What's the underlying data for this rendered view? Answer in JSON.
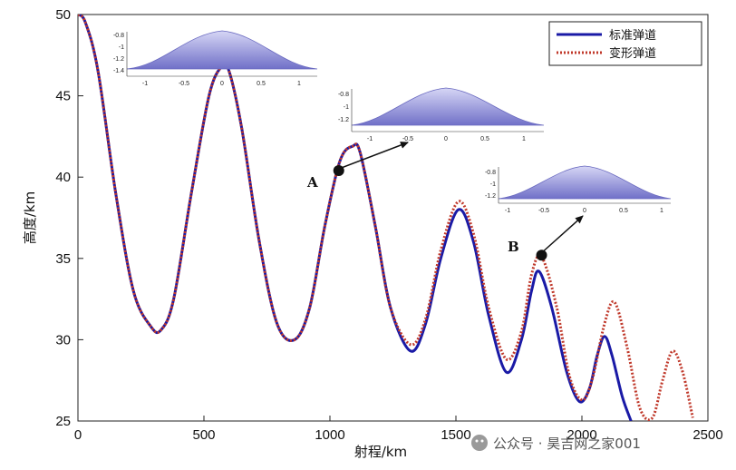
{
  "chart_data": {
    "type": "line",
    "xlabel": "射程/km",
    "ylabel": "高度/km",
    "xlim": [
      0,
      2500
    ],
    "ylim": [
      25,
      50
    ],
    "xticks": [
      0,
      500,
      1000,
      1500,
      2000,
      2500
    ],
    "yticks": [
      25,
      30,
      35,
      40,
      45,
      50
    ],
    "grid": false,
    "legend_position": "top-right",
    "series": [
      {
        "name": "标准弹道",
        "color": "#1a1aa6",
        "style": "solid",
        "x": [
          0,
          30,
          80,
          150,
          220,
          290,
          330,
          380,
          450,
          520,
          570,
          600,
          650,
          720,
          790,
          860,
          920,
          980,
          1040,
          1090,
          1120,
          1180,
          1240,
          1320,
          1380,
          1440,
          1510,
          1570,
          1630,
          1700,
          1760,
          1800,
          1830,
          1880,
          1940,
          1990,
          2030,
          2060,
          2090,
          2120,
          2160,
          2195
        ],
        "y": [
          50,
          49.5,
          46.5,
          39.0,
          33.0,
          30.8,
          30.6,
          32.5,
          39.0,
          45.0,
          46.8,
          46.5,
          43.0,
          36.0,
          31.0,
          30.0,
          32.0,
          37.0,
          41.0,
          41.9,
          41.5,
          37.0,
          32.0,
          29.3,
          31.0,
          35.0,
          38.0,
          36.0,
          31.5,
          28.0,
          30.0,
          33.0,
          34.2,
          32.0,
          28.0,
          26.2,
          27.0,
          29.0,
          30.2,
          29.0,
          26.5,
          25.0
        ]
      },
      {
        "name": "变形弹道",
        "color": "#c0392b",
        "style": "dotted",
        "x": [
          0,
          30,
          80,
          150,
          220,
          290,
          330,
          380,
          450,
          520,
          570,
          600,
          650,
          720,
          790,
          860,
          920,
          980,
          1040,
          1090,
          1120,
          1180,
          1240,
          1320,
          1380,
          1440,
          1510,
          1570,
          1630,
          1700,
          1760,
          1800,
          1840,
          1900,
          1950,
          2000,
          2040,
          2090,
          2130,
          2180,
          2230,
          2280,
          2320,
          2360,
          2400,
          2440
        ],
        "y": [
          50,
          49.5,
          46.5,
          39.0,
          33.0,
          30.8,
          30.6,
          32.5,
          39.0,
          45.0,
          46.8,
          46.5,
          43.0,
          36.0,
          31.0,
          30.0,
          32.0,
          37.0,
          41.0,
          41.9,
          41.5,
          37.0,
          32.0,
          29.7,
          31.3,
          35.5,
          38.5,
          36.5,
          32.0,
          28.8,
          30.5,
          34.0,
          35.1,
          32.0,
          27.8,
          26.3,
          27.5,
          31.0,
          32.3,
          29.5,
          25.8,
          25.2,
          27.5,
          29.3,
          28.0,
          25.2
        ]
      }
    ],
    "annotations": [
      {
        "label": "A",
        "x": 1035,
        "y": 40.4
      },
      {
        "label": "B",
        "x": 1840,
        "y": 35.2
      }
    ],
    "insets": [
      {
        "name": "inset-top-left",
        "xticks": [
          "-1",
          "-0.5",
          "0",
          "0.5",
          "1"
        ],
        "yticks": [
          "-0.8",
          "-1",
          "-1.2",
          "-1.4"
        ]
      },
      {
        "name": "inset-middle",
        "xticks": [
          "-1",
          "-0.5",
          "0",
          "0.5",
          "1"
        ],
        "yticks": [
          "-0.8",
          "-1",
          "-1.2"
        ]
      },
      {
        "name": "inset-right",
        "xticks": [
          "-1",
          "-0.5",
          "0",
          "0.5",
          "1"
        ],
        "yticks": [
          "-0.8",
          "-1",
          "-1.2"
        ]
      }
    ]
  },
  "watermark": {
    "text": "公众号 · 昊吉网之家001"
  }
}
